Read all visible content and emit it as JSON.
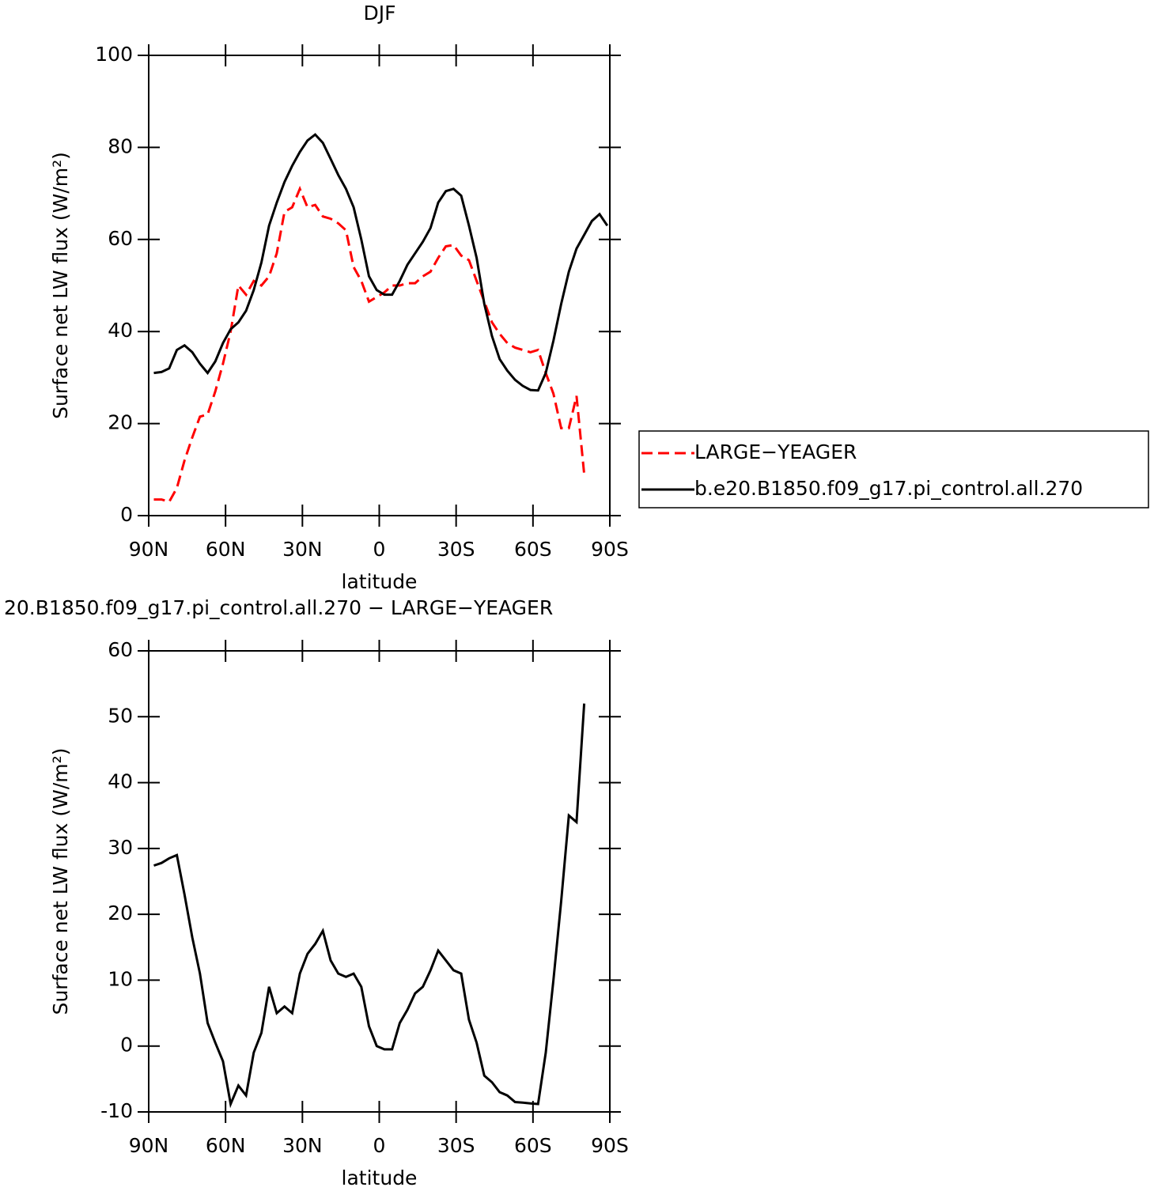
{
  "chart_data": [
    {
      "type": "line",
      "title": "DJF",
      "xlabel": "latitude",
      "ylabel": "Surface net LW flux (W/m²)",
      "x": [
        88,
        85,
        82,
        79,
        76,
        73,
        70,
        67,
        64,
        61,
        58,
        55,
        52,
        49,
        46,
        43,
        40,
        37,
        34,
        31,
        28,
        25,
        22,
        19,
        16,
        13,
        10,
        7,
        4,
        1,
        -2,
        -5,
        -8,
        -11,
        -14,
        -17,
        -20,
        -23,
        -26,
        -29,
        -32,
        -35,
        -38,
        -41,
        -44,
        -47,
        -50,
        -53,
        -56,
        -59,
        -62,
        -65,
        -68,
        -71,
        -74,
        -77,
        -80,
        -83,
        -86,
        -89
      ],
      "series": [
        {
          "name": "LARGE−YEAGER",
          "color": "#ff0000",
          "linestyle": "dashed",
          "values": [
            3.5,
            3.5,
            3,
            6,
            12,
            17,
            21.5,
            22,
            27,
            33,
            40,
            50,
            48,
            51,
            50,
            52,
            57,
            66,
            67,
            71,
            67,
            67.5,
            65,
            64.5,
            63.5,
            62,
            54,
            51,
            46.5,
            47.5,
            48.5,
            50,
            50,
            50.5,
            50.5,
            52,
            53,
            56,
            58.5,
            58.8,
            56.5,
            55.5,
            51,
            46.5,
            42,
            39.5,
            37.5,
            36.5,
            36,
            35.5,
            36,
            31,
            26.5,
            19,
            19,
            26,
            9,
            null,
            null,
            null
          ]
        },
        {
          "name": "b.e20.B1850.f09_g17.pi_control.all.270",
          "color": "#000000",
          "linestyle": "solid",
          "values": [
            31,
            31.2,
            32,
            36,
            37,
            35.5,
            33,
            31,
            33.5,
            37.5,
            40.5,
            42,
            44.5,
            49,
            55,
            63,
            68,
            72.5,
            76,
            79,
            81.5,
            82.8,
            81,
            77.5,
            74,
            71,
            67,
            60,
            52,
            49,
            48,
            48,
            51,
            54.5,
            57,
            59.5,
            62.5,
            68,
            70.5,
            71,
            69.5,
            63,
            56,
            46,
            39,
            34,
            31.5,
            29.5,
            28.2,
            27.3,
            27.2,
            31,
            38,
            46,
            53,
            58,
            61,
            64,
            65.5,
            63
          ]
        }
      ],
      "xlim": [
        90,
        -90
      ],
      "xticks": [
        {
          "value": 90,
          "label": "90N"
        },
        {
          "value": 60,
          "label": "60N"
        },
        {
          "value": 30,
          "label": "30N"
        },
        0,
        {
          "value": -30,
          "label": "30S"
        },
        {
          "value": -60,
          "label": "60S"
        },
        {
          "value": -90,
          "label": "90S"
        }
      ],
      "ylim": [
        0,
        100
      ],
      "yticks": [
        0,
        20,
        40,
        60,
        80,
        100
      ],
      "legend": "right"
    },
    {
      "type": "line",
      "title": "20.B1850.f09_g17.pi_control.all.270 − LARGE−YEAGER",
      "xlabel": "latitude",
      "ylabel": "Surface net LW flux (W/m²)",
      "x": [
        88,
        85,
        82,
        79,
        76,
        73,
        70,
        67,
        64,
        61,
        58,
        55,
        52,
        49,
        46,
        43,
        40,
        37,
        34,
        31,
        28,
        25,
        22,
        19,
        16,
        13,
        10,
        7,
        4,
        1,
        -2,
        -5,
        -8,
        -11,
        -14,
        -17,
        -20,
        -23,
        -26,
        -29,
        -32,
        -35,
        -38,
        -41,
        -44,
        -47,
        -50,
        -53,
        -56,
        -59,
        -62,
        -65,
        -68,
        -71,
        -74,
        -77,
        -80,
        -83,
        -86,
        -89
      ],
      "color": "#000000",
      "values": [
        27.4,
        27.8,
        28.5,
        29,
        23,
        16.5,
        11,
        3.5,
        0.5,
        -2.3,
        -8.8,
        -6,
        -7.5,
        -1,
        2,
        9,
        5,
        6,
        5,
        11,
        14,
        15.5,
        17.5,
        13,
        11,
        10.5,
        11,
        9,
        3,
        0,
        -0.5,
        -0.5,
        3.5,
        5.5,
        8,
        9,
        11.5,
        14.5,
        13,
        11.5,
        11,
        4,
        0.5,
        -4.5,
        -5.5,
        -7,
        -7.5,
        -8.5,
        -8.6,
        -8.7,
        -8.8,
        -1,
        10,
        22,
        35,
        34,
        52,
        null,
        null,
        null
      ],
      "xlim": [
        90,
        -90
      ],
      "xticks": [
        {
          "value": 90,
          "label": "90N"
        },
        {
          "value": 60,
          "label": "60N"
        },
        {
          "value": 30,
          "label": "30N"
        },
        0,
        {
          "value": -30,
          "label": "30S"
        },
        {
          "value": -60,
          "label": "60S"
        },
        {
          "value": -90,
          "label": "90S"
        }
      ],
      "ylim": [
        -10,
        60
      ],
      "yticks": [
        -10,
        0,
        10,
        20,
        30,
        40,
        50,
        60
      ]
    }
  ]
}
